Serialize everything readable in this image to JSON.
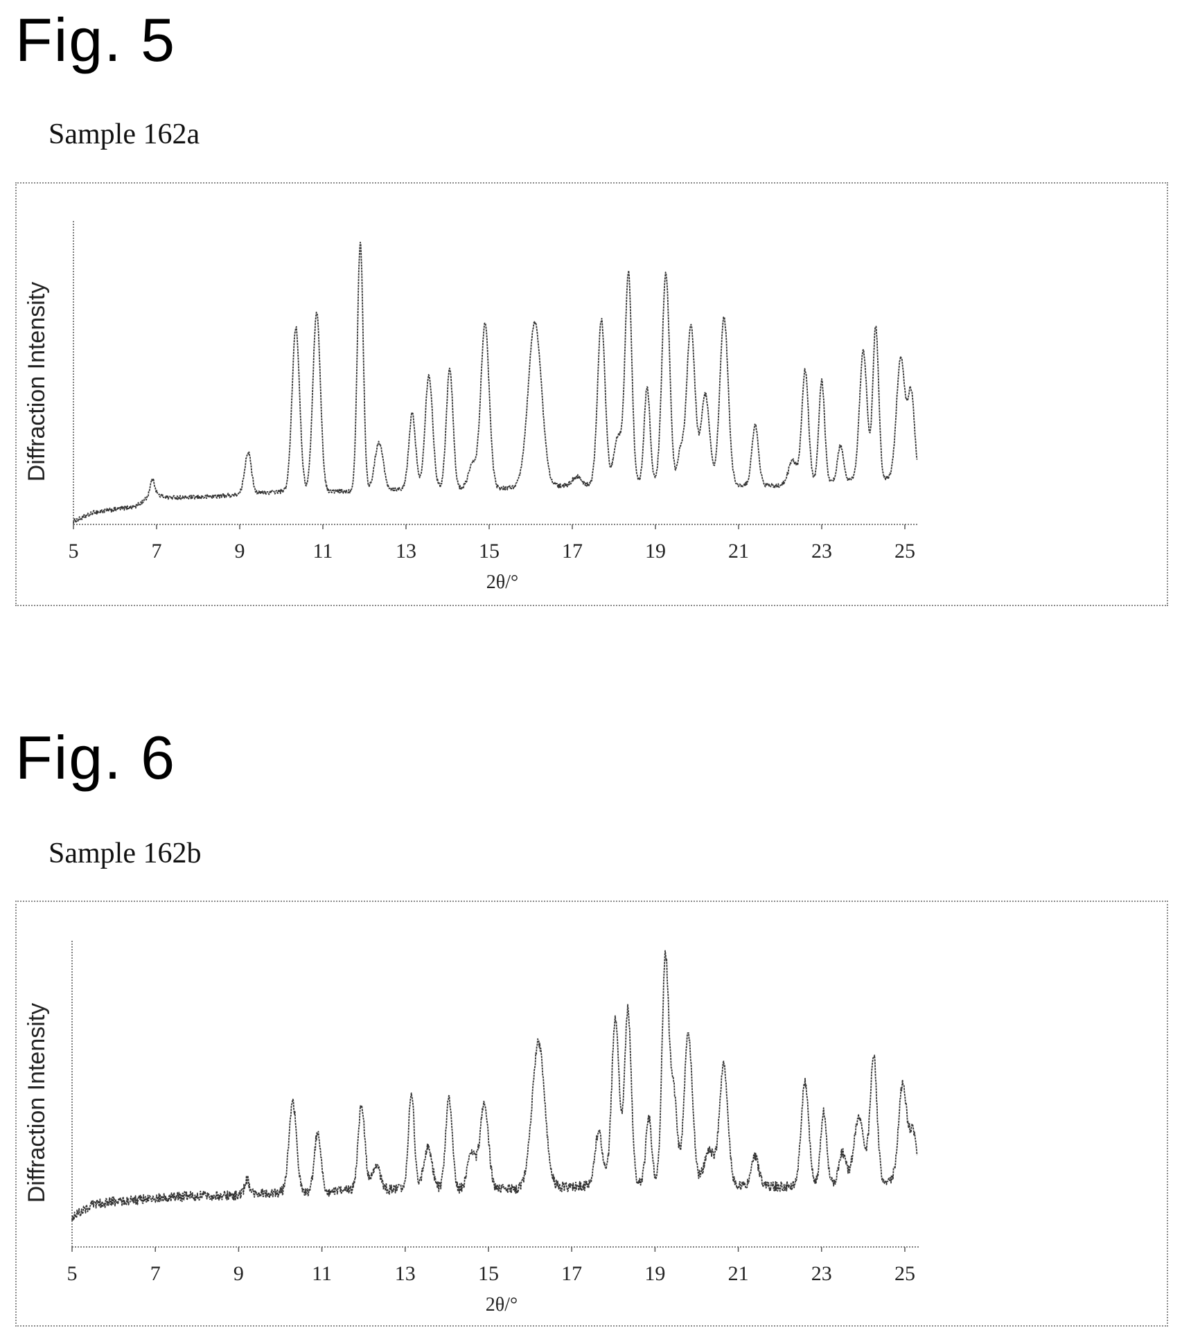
{
  "figures": [
    {
      "fig_label": "Fig. 5",
      "sample_label": "Sample 162a"
    },
    {
      "fig_label": "Fig. 6",
      "sample_label": "Sample 162b"
    }
  ],
  "chart_data": [
    {
      "type": "line",
      "xlabel": "2θ/°",
      "ylabel": "Diffraction Intensity",
      "xlim": [
        5,
        25.3
      ],
      "ylim": [
        0,
        100
      ],
      "xticks": [
        5,
        7,
        9,
        11,
        13,
        15,
        17,
        19,
        21,
        23,
        25
      ],
      "grid": false,
      "series": [
        {
          "color": "#333333",
          "baseline": [
            [
              5.0,
              1
            ],
            [
              5.5,
              4
            ],
            [
              6.0,
              5
            ],
            [
              6.5,
              6
            ],
            [
              6.9,
              10
            ],
            [
              7.3,
              9
            ],
            [
              8.0,
              9
            ],
            [
              9.0,
              10
            ],
            [
              10.0,
              11
            ],
            [
              11.5,
              11
            ],
            [
              13.0,
              12
            ],
            [
              15.0,
              12
            ],
            [
              17.0,
              13
            ],
            [
              19.0,
              14
            ],
            [
              21.0,
              13
            ],
            [
              22.0,
              13
            ],
            [
              23.0,
              14
            ],
            [
              25.3,
              16
            ]
          ],
          "peaks": [
            [
              6.9,
              5,
              0.06
            ],
            [
              9.2,
              14,
              0.08
            ],
            [
              10.35,
              55,
              0.09
            ],
            [
              10.85,
              60,
              0.09
            ],
            [
              11.9,
              83,
              0.07
            ],
            [
              12.35,
              16,
              0.1
            ],
            [
              13.15,
              25,
              0.08
            ],
            [
              13.55,
              38,
              0.09
            ],
            [
              14.05,
              40,
              0.08
            ],
            [
              14.6,
              8,
              0.1
            ],
            [
              14.9,
              55,
              0.1
            ],
            [
              16.1,
              55,
              0.16
            ],
            [
              17.1,
              3,
              0.1
            ],
            [
              17.7,
              55,
              0.09
            ],
            [
              18.1,
              16,
              0.1
            ],
            [
              18.35,
              70,
              0.08
            ],
            [
              18.8,
              32,
              0.07
            ],
            [
              19.25,
              70,
              0.09
            ],
            [
              19.6,
              10,
              0.07
            ],
            [
              19.85,
              53,
              0.1
            ],
            [
              20.2,
              30,
              0.1
            ],
            [
              20.65,
              56,
              0.1
            ],
            [
              21.4,
              20,
              0.08
            ],
            [
              22.3,
              8,
              0.1
            ],
            [
              22.6,
              38,
              0.08
            ],
            [
              23.0,
              34,
              0.07
            ],
            [
              23.45,
              12,
              0.07
            ],
            [
              24.0,
              43,
              0.09
            ],
            [
              24.3,
              51,
              0.07
            ],
            [
              24.9,
              40,
              0.1
            ],
            [
              25.15,
              28,
              0.08
            ]
          ],
          "noise": 0.7
        }
      ]
    },
    {
      "type": "line",
      "xlabel": "2θ/°",
      "ylabel": "Diffraction Intensity",
      "xlim": [
        5,
        25.3
      ],
      "ylim": [
        0,
        100
      ],
      "xticks": [
        5,
        7,
        9,
        11,
        13,
        15,
        17,
        19,
        21,
        23,
        25
      ],
      "grid": false,
      "series": [
        {
          "color": "#333333",
          "baseline": [
            [
              5.0,
              10
            ],
            [
              5.5,
              14
            ],
            [
              6.0,
              15
            ],
            [
              7.0,
              16
            ],
            [
              8.0,
              17
            ],
            [
              9.0,
              17
            ],
            [
              10.0,
              18
            ],
            [
              11.0,
              18
            ],
            [
              12.0,
              19
            ],
            [
              13.0,
              19
            ],
            [
              15.0,
              19
            ],
            [
              17.0,
              20
            ],
            [
              19.0,
              21
            ],
            [
              21.0,
              20
            ],
            [
              22.0,
              20
            ],
            [
              23.0,
              21
            ],
            [
              25.3,
              22
            ]
          ],
          "peaks": [
            [
              9.2,
              5,
              0.06
            ],
            [
              10.3,
              30,
              0.09
            ],
            [
              10.9,
              20,
              0.08
            ],
            [
              11.95,
              28,
              0.08
            ],
            [
              12.3,
              8,
              0.1
            ],
            [
              13.15,
              32,
              0.07
            ],
            [
              13.55,
              14,
              0.1
            ],
            [
              14.05,
              30,
              0.08
            ],
            [
              14.6,
              12,
              0.1
            ],
            [
              14.9,
              28,
              0.1
            ],
            [
              16.2,
              48,
              0.15
            ],
            [
              17.65,
              18,
              0.09
            ],
            [
              18.05,
              55,
              0.09
            ],
            [
              18.35,
              58,
              0.08
            ],
            [
              18.85,
              22,
              0.07
            ],
            [
              19.25,
              75,
              0.08
            ],
            [
              19.45,
              30,
              0.08
            ],
            [
              19.8,
              50,
              0.1
            ],
            [
              20.3,
              12,
              0.12
            ],
            [
              20.65,
              40,
              0.1
            ],
            [
              21.4,
              10,
              0.09
            ],
            [
              22.6,
              34,
              0.09
            ],
            [
              23.05,
              24,
              0.07
            ],
            [
              23.5,
              10,
              0.08
            ],
            [
              23.9,
              22,
              0.12
            ],
            [
              24.25,
              42,
              0.08
            ],
            [
              24.95,
              32,
              0.1
            ],
            [
              25.2,
              16,
              0.08
            ]
          ],
          "noise": 1.6
        }
      ]
    }
  ]
}
